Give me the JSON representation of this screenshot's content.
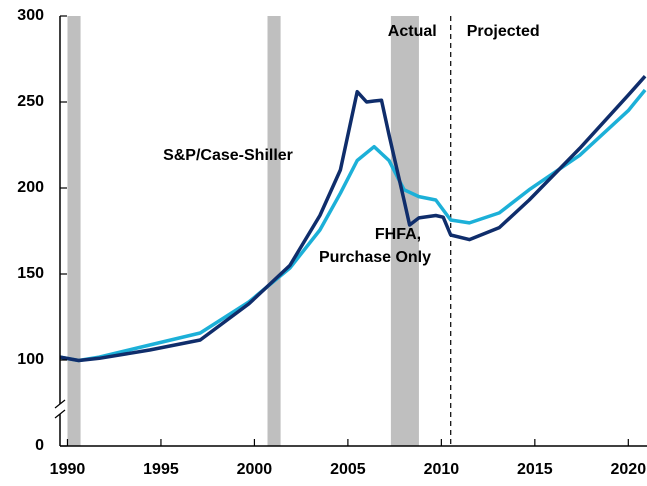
{
  "chart_data": {
    "type": "line",
    "xlim": [
      1989.6,
      2021.0
    ],
    "xticks": [
      1990,
      1995,
      2000,
      2005,
      2010,
      2015,
      2020
    ],
    "ylim": [
      0,
      300
    ],
    "yticks": [
      0,
      100,
      150,
      200,
      250,
      300
    ],
    "axis_break": [
      0,
      100
    ],
    "shaded_periods": [
      [
        1990.0,
        1990.7
      ],
      [
        2000.7,
        2001.4
      ],
      [
        2007.3,
        2008.8
      ]
    ],
    "shade_color": "#bfbfbf",
    "divider_x": 2010.5,
    "period_labels": [
      "Actual",
      "Projected"
    ],
    "series": [
      {
        "name": "S&P/Case-Shiller",
        "color": "#1cb0d8",
        "x": [
          1989.6,
          1990.6,
          1991.7,
          1994.4,
          1997.1,
          1999.7,
          2001.9,
          2003.5,
          2004.6,
          2005.5,
          2006.4,
          2007.2,
          2008.0,
          2008.8,
          2009.7,
          2010.5,
          2011.5,
          2013.1,
          2014.7,
          2017.4,
          2020.0,
          2020.9
        ],
        "values": [
          101.7,
          99.4,
          101.7,
          108.7,
          115.7,
          133.7,
          153.5,
          175.6,
          197,
          216,
          224,
          216,
          199,
          195,
          193,
          181.4,
          179.7,
          185.5,
          199,
          219,
          245,
          257
        ]
      },
      {
        "name_lines": [
          "FHFA,",
          "Purchase Only"
        ],
        "color": "#0f2d6b",
        "x": [
          1989.6,
          1990.6,
          1991.7,
          1994.4,
          1997.1,
          1999.7,
          2001.9,
          2003.5,
          2004.6,
          2005.5,
          2006.0,
          2006.4,
          2006.8,
          2007.2,
          2008.0,
          2008.3,
          2008.8,
          2009.7,
          2010.1,
          2010.5,
          2011.5,
          2013.1,
          2014.7,
          2017.4,
          2020.0,
          2020.9
        ],
        "values": [
          101.7,
          99.4,
          101,
          105.8,
          111.6,
          132.6,
          155,
          184,
          210.5,
          256,
          250,
          250.6,
          251,
          231,
          193,
          178.5,
          182.6,
          184,
          183,
          172.7,
          170,
          177,
          193,
          223,
          254,
          265
        ]
      }
    ]
  }
}
